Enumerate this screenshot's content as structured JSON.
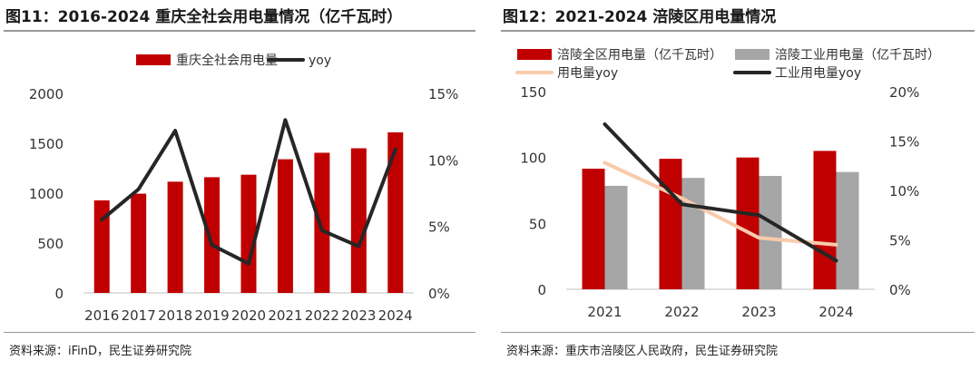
{
  "colors": {
    "red": "#c00000",
    "gray": "#a6a6a6",
    "black": "#262626",
    "pink": "#f8cbad"
  },
  "chart_data": [
    {
      "type": "bar",
      "title": "图11：2016-2024 重庆全社会用电量情况（亿千瓦时）",
      "source": "资料来源：iFinD，民生证券研究院",
      "categories": [
        "2016",
        "2017",
        "2018",
        "2019",
        "2020",
        "2021",
        "2022",
        "2023",
        "2024"
      ],
      "series": [
        {
          "name": "重庆全社会用电量",
          "type": "bar",
          "axis": "left",
          "color": "#c00000",
          "values": [
            928,
            995,
            1115,
            1160,
            1185,
            1340,
            1405,
            1450,
            1610
          ]
        },
        {
          "name": "yoy",
          "type": "line",
          "axis": "right",
          "color": "#262626",
          "values": [
            5.5,
            7.8,
            12.2,
            3.6,
            2.2,
            13.0,
            4.7,
            3.5,
            10.8
          ]
        }
      ],
      "left_axis": {
        "ylim": [
          0,
          2000
        ],
        "ticks": [
          "0",
          "500",
          "1000",
          "1500",
          "2000"
        ]
      },
      "right_axis": {
        "ylim": [
          0,
          15
        ],
        "ticks": [
          "0%",
          "5%",
          "10%",
          "15%"
        ]
      },
      "legend_position": "top"
    },
    {
      "type": "bar",
      "title": "图12：2021-2024 涪陵区用电量情况",
      "source": "资料来源：重庆市涪陵区人民政府，民生证券研究院",
      "categories": [
        "2021",
        "2022",
        "2023",
        "2024"
      ],
      "series": [
        {
          "name": "涪陵全区用电量（亿千瓦时）",
          "type": "bar",
          "axis": "left",
          "color": "#c00000",
          "values": [
            91.5,
            99,
            100,
            105
          ]
        },
        {
          "name": "涪陵工业用电量（亿千瓦时）",
          "type": "bar",
          "axis": "left",
          "color": "#a6a6a6",
          "values": [
            78.5,
            84.5,
            86,
            89
          ]
        },
        {
          "name": "用电量yoy",
          "type": "line",
          "axis": "right",
          "color": "#f8cbad",
          "values": [
            12.8,
            9.2,
            5.2,
            4.5
          ]
        },
        {
          "name": "工业用电量yoy",
          "type": "line",
          "axis": "right",
          "color": "#262626",
          "values": [
            16.7,
            8.6,
            7.5,
            2.9
          ]
        }
      ],
      "left_axis": {
        "ylim": [
          0,
          150
        ],
        "ticks": [
          "0",
          "50",
          "100",
          "150"
        ]
      },
      "right_axis": {
        "ylim": [
          0,
          20
        ],
        "ticks": [
          "0%",
          "5%",
          "10%",
          "15%",
          "20%"
        ]
      },
      "legend_position": "top"
    }
  ]
}
